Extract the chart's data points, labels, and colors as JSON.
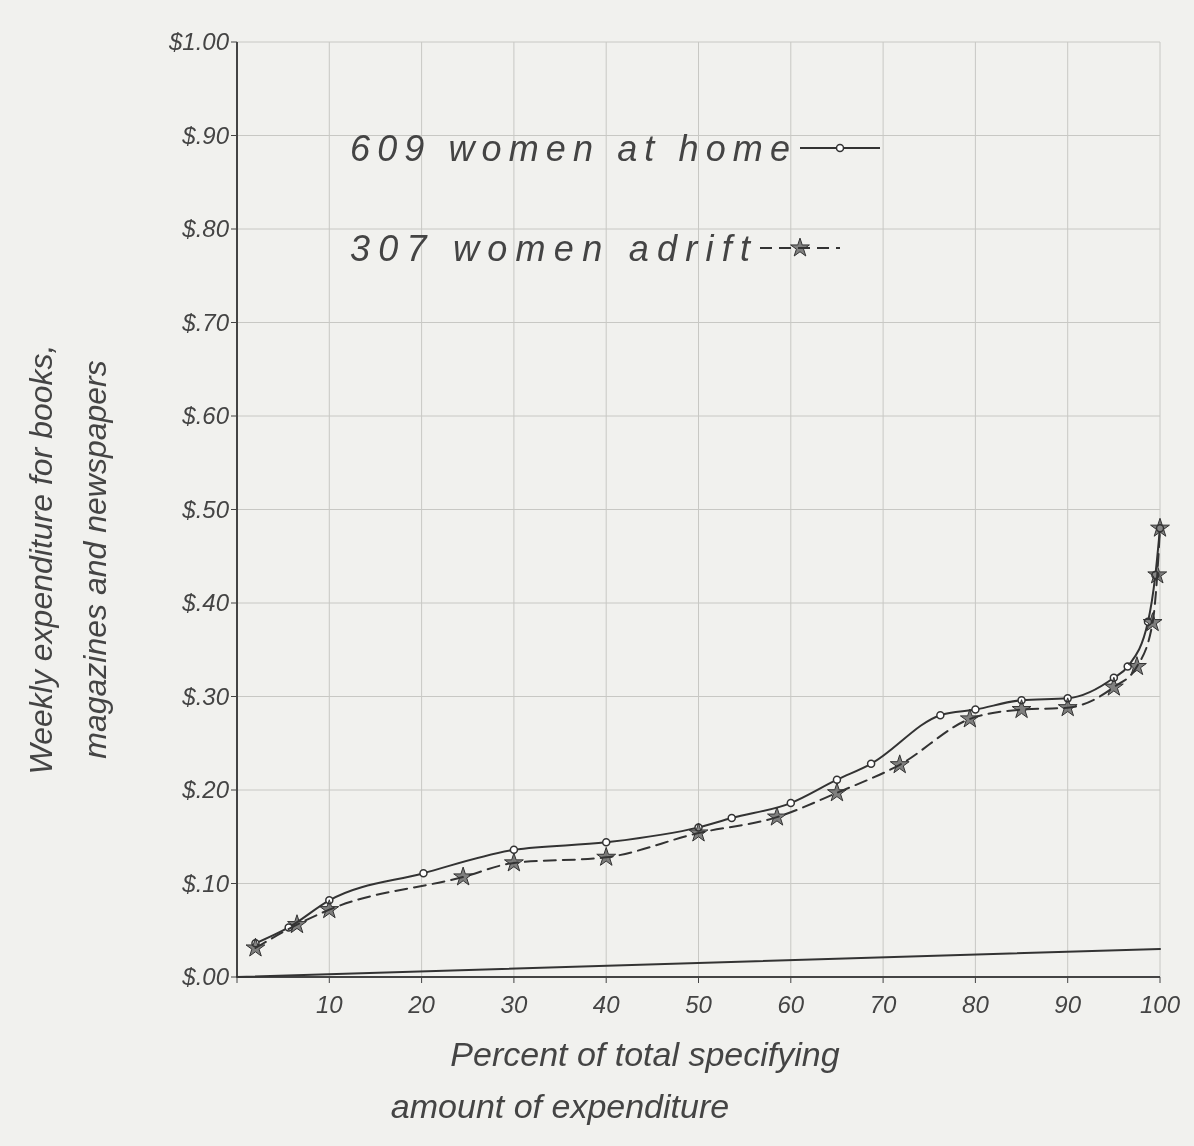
{
  "chart_data": {
    "type": "line",
    "xlabel": "Percent of total specifying\namount of expenditure",
    "ylabel": "Weekly expenditure for books,\nmagazines and newspapers",
    "xlim": [
      0,
      100
    ],
    "xticks": [
      {
        "value": 0,
        "label": null
      },
      10,
      20,
      30,
      40,
      50,
      60,
      70,
      80,
      90,
      100
    ],
    "ylim": [
      0,
      1
    ],
    "yticks": [
      {
        "value": 0,
        "label": "$.00"
      },
      {
        "value": 0.1,
        "label": "$.10"
      },
      {
        "value": 0.2,
        "label": "$.20"
      },
      {
        "value": 0.3,
        "label": "$.30"
      },
      {
        "value": 0.4,
        "label": "$.40"
      },
      {
        "value": 0.5,
        "label": "$.50"
      },
      {
        "value": 0.6,
        "label": "$.60"
      },
      {
        "value": 0.7,
        "label": "$.70"
      },
      {
        "value": 0.8,
        "label": "$.80"
      },
      {
        "value": 0.9,
        "label": "$.90"
      },
      {
        "value": 1,
        "label": "$1.00"
      }
    ],
    "grid": true,
    "legend": "top",
    "series": [
      {
        "name": "609 women at home",
        "color": "#333333",
        "line_style": "solid",
        "marker": "circle",
        "x": [
          2,
          5.6,
          10,
          20.2,
          30,
          40,
          50,
          53.6,
          60,
          65,
          68.7,
          76.2,
          80,
          85,
          90,
          95,
          96.5,
          98.7,
          99.5,
          100
        ],
        "values": [
          0.036,
          0.053,
          0.082,
          0.111,
          0.136,
          0.144,
          0.16,
          0.17,
          0.186,
          0.211,
          0.228,
          0.28,
          0.286,
          0.296,
          0.298,
          0.32,
          0.332,
          0.38,
          0.43,
          0.48
        ]
      },
      {
        "name": "307 women adrift",
        "color": "#333333",
        "line_style": "dashed",
        "marker": "star",
        "x": [
          2,
          6.5,
          10,
          24.5,
          30,
          40,
          50,
          58.5,
          65,
          71.8,
          79.4,
          85,
          90,
          95,
          97.5,
          99.2,
          99.7,
          100
        ],
        "values": [
          0.031,
          0.056,
          0.072,
          0.107,
          0.122,
          0.128,
          0.154,
          0.171,
          0.197,
          0.227,
          0.276,
          0.286,
          0.288,
          0.31,
          0.332,
          0.379,
          0.43,
          0.48
        ]
      },
      {
        "type": "line",
        "color": "#333333",
        "line_style": "solid",
        "marker": "none",
        "x": [
          0,
          100
        ],
        "values": [
          0,
          0.03
        ]
      }
    ]
  }
}
